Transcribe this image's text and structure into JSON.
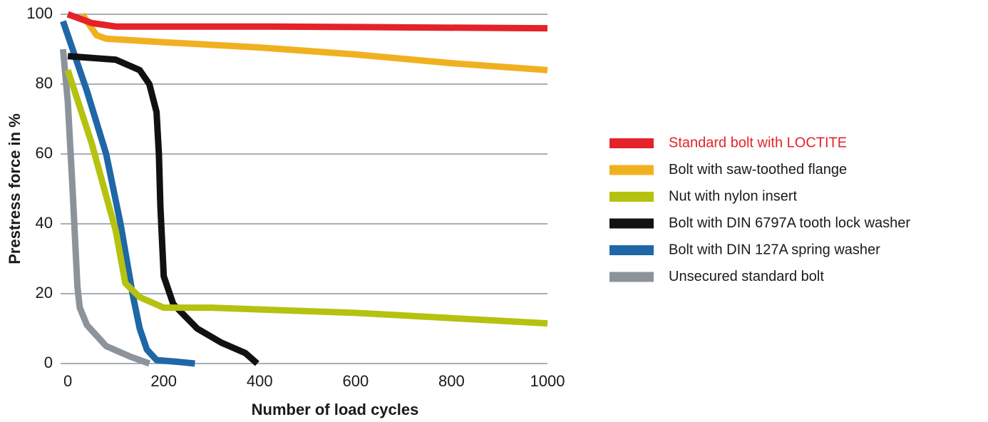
{
  "chart_data": {
    "type": "line",
    "xlabel": "Number of load cycles",
    "ylabel": "Prestress force in %",
    "xlim": [
      -15,
      1000
    ],
    "xticks": [
      0,
      200,
      400,
      600,
      800,
      1000
    ],
    "ylim": [
      0,
      100
    ],
    "yticks": [
      0,
      20,
      40,
      60,
      80,
      100
    ],
    "grid": true,
    "legend": "right",
    "series": [
      {
        "name": "Standard bolt with LOCTITE",
        "color": "#e4222a",
        "x": [
          0,
          20,
          50,
          100,
          200,
          400,
          1000
        ],
        "values": [
          100,
          99,
          97.5,
          96.5,
          96.5,
          96.5,
          96
        ]
      },
      {
        "name": "Bolt with saw-toothed flange",
        "color": "#f0b120",
        "x": [
          30,
          40,
          60,
          80,
          200,
          400,
          600,
          800,
          1000
        ],
        "values": [
          100,
          98,
          94,
          93,
          92,
          90.5,
          88.5,
          86,
          84
        ]
      },
      {
        "name": "Nut with nylon insert",
        "color": "#b5c20f",
        "x": [
          0,
          50,
          100,
          120,
          150,
          200,
          300,
          400,
          600,
          800,
          1000
        ],
        "values": [
          84,
          63,
          38,
          23,
          19,
          16,
          16,
          15.5,
          14.5,
          13,
          11.5
        ]
      },
      {
        "name": "Bolt with DIN 6797A tooth lock washer",
        "color": "#111111",
        "x": [
          0,
          100,
          150,
          170,
          185,
          190,
          193,
          200,
          220,
          270,
          320,
          370,
          395
        ],
        "values": [
          88,
          87,
          84,
          80,
          72,
          60,
          45,
          25,
          17,
          10,
          6,
          3,
          0
        ]
      },
      {
        "name": "Bolt with DIN 127A spring washer",
        "color": "#1f67a6",
        "x": [
          -10,
          40,
          80,
          110,
          135,
          150,
          165,
          185,
          230,
          265
        ],
        "values": [
          98,
          78,
          60,
          40,
          20,
          10,
          4,
          1,
          0.5,
          0
        ]
      },
      {
        "name": "Unsecured standard bolt",
        "color": "#8c939b",
        "x": [
          -10,
          0,
          10,
          20,
          25,
          40,
          80,
          130,
          170
        ],
        "values": [
          90,
          75,
          50,
          22,
          16,
          11,
          5,
          2,
          0
        ]
      }
    ]
  }
}
